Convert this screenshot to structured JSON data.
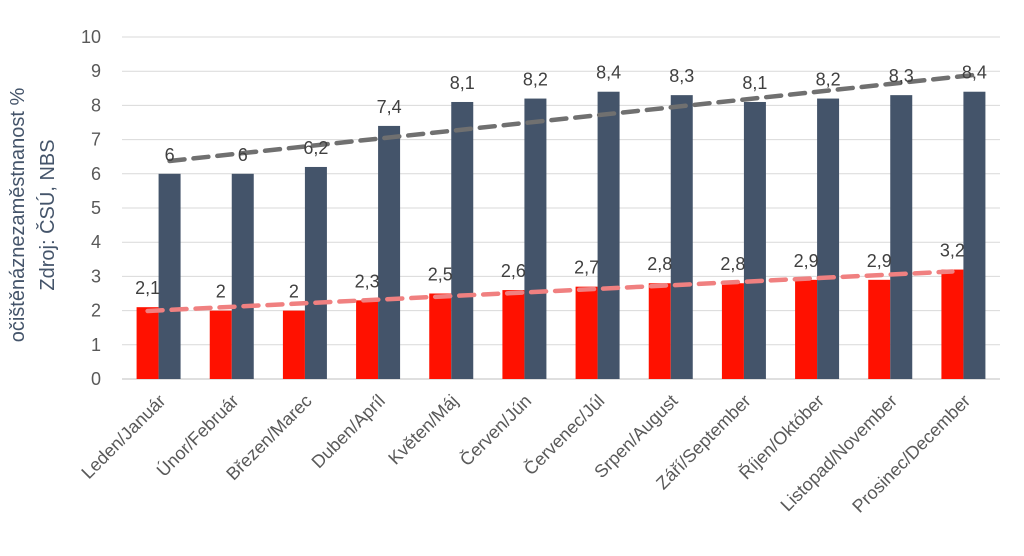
{
  "chart_data": {
    "type": "bar",
    "ylabel_lines": [
      "očištěnáznezaměstnanost %",
      "Zdroj: ČSÚ, NBS"
    ],
    "categories": [
      "Leden/Január",
      "Únor/Február",
      "Březen/Marec",
      "Duben/Apríl",
      "Květen/Máj",
      "Červen/Jún",
      "Červenec/Júl",
      "Srpen/August",
      "Září/September",
      "Říjen/Október",
      "Listopad/November",
      "Prosinec/December"
    ],
    "series": [
      {
        "values": [
          2.1,
          2.0,
          2.0,
          2.3,
          2.5,
          2.6,
          2.7,
          2.8,
          2.8,
          2.9,
          2.9,
          3.2
        ],
        "labels": [
          "2,1",
          "2",
          "2",
          "2,3",
          "2,5",
          "2,6",
          "2,7",
          "2,8",
          "2,8",
          "2,9",
          "2,9",
          "3,2"
        ],
        "color": "#ff1100",
        "trendline_color": "#f08080"
      },
      {
        "values": [
          6.0,
          6.0,
          6.2,
          7.4,
          8.1,
          8.2,
          8.4,
          8.3,
          8.1,
          8.2,
          8.3,
          8.4
        ],
        "labels": [
          "6",
          "6",
          "6,2",
          "7,4",
          "8,1",
          "8,2",
          "8,4",
          "8,3",
          "8,1",
          "8,2",
          "8,3",
          "8,4"
        ],
        "color": "#44546a",
        "trendline_color": "#707070"
      }
    ],
    "ylim": [
      0,
      10
    ],
    "yticks": [
      0,
      1,
      2,
      3,
      4,
      5,
      6,
      7,
      8,
      9,
      10
    ],
    "grid": true,
    "trendlines": "linear, dashed"
  }
}
